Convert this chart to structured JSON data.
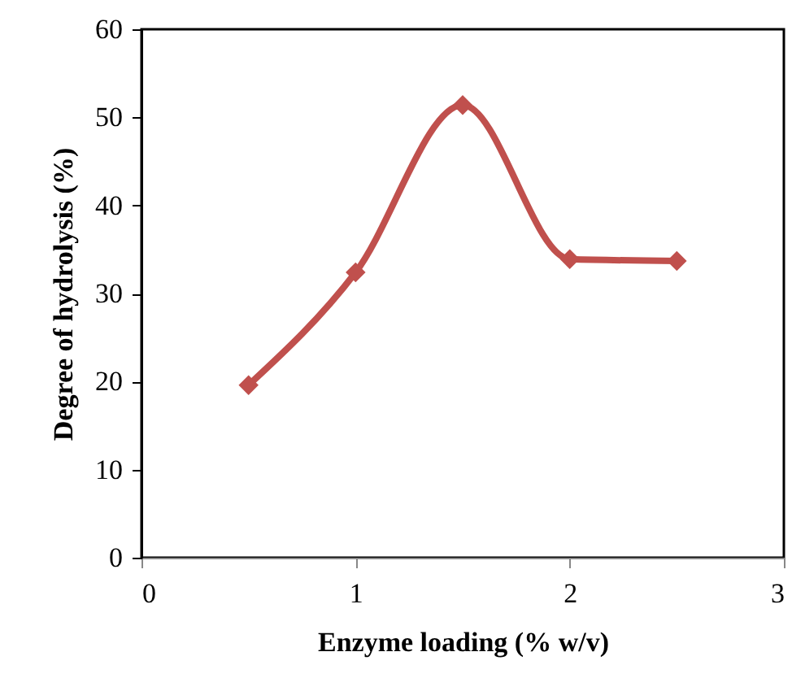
{
  "chart_data": {
    "type": "line",
    "xlabel": "Enzyme loading (% w/v)",
    "ylabel": "Degree of hydrolysis (%)",
    "x": [
      0.5,
      1,
      1.5,
      2,
      2.5
    ],
    "series": [
      {
        "color": "#c0504d",
        "values": [
          19.6,
          32.4,
          51.4,
          33.9,
          33.7
        ]
      }
    ],
    "xlim": [
      0,
      3
    ],
    "xticks": [
      0,
      1,
      2,
      3
    ],
    "ylim": [
      0,
      60
    ],
    "yticks": [
      0,
      10,
      20,
      30,
      40,
      50,
      60
    ],
    "grid": false,
    "marker": "diamond",
    "line_style": "solid"
  }
}
